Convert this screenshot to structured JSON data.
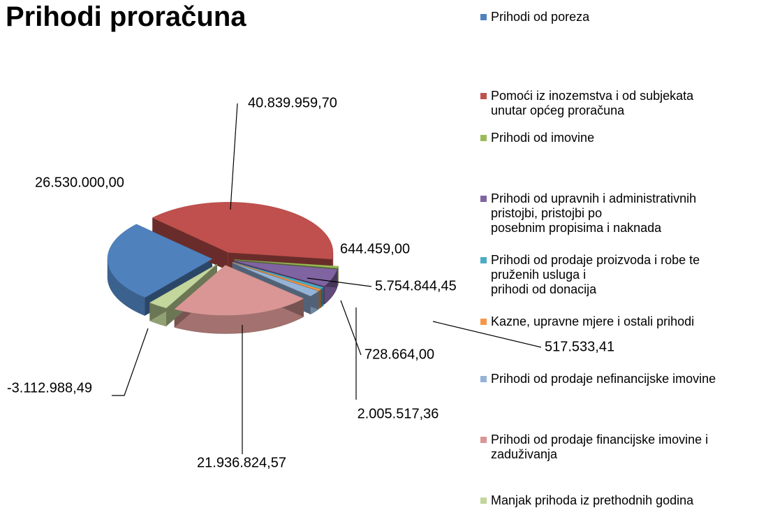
{
  "chart_data": {
    "type": "pie",
    "title": "Prihodi proračuna",
    "categories": [
      "Prihodi od poreza",
      "Pomoći iz inozemstva i od subjekata\nunutar  općeg proračuna",
      "Prihodi od imovine",
      "Prihodi od upravnih i administrativnih\npristojbi, pristojbi po\nposebnim propisima i naknada",
      "Prihodi od prodaje proizvoda i robe te\npruženih usluga i\nprihodi od donacija",
      "Kazne, upravne mjere i ostali prihodi",
      "Prihodi od prodaje nefinancijske imovine",
      "Prihodi od prodaje financijske imovine i\nzaduživanja",
      "Manjak prihoda iz prethodnih godina"
    ],
    "values": [
      26530000.0,
      40839959.7,
      644459.0,
      5754844.45,
      728664.0,
      517533.41,
      2005517.36,
      21936824.57,
      -3112988.49
    ],
    "value_labels": [
      "26.530.000,00",
      "40.839.959,70",
      "644.459,00",
      "5.754.844,45",
      "728.664,00",
      "517.533,41",
      "2.005.517,36",
      "21.936.824,57",
      "-3.112.988,49"
    ],
    "colors": [
      "#4f81bd",
      "#c0504d",
      "#9bbb59",
      "#8064a2",
      "#4bacc6",
      "#f79646",
      "#95b3d7",
      "#d99694",
      "#c3d69b"
    ],
    "legend": "right"
  }
}
